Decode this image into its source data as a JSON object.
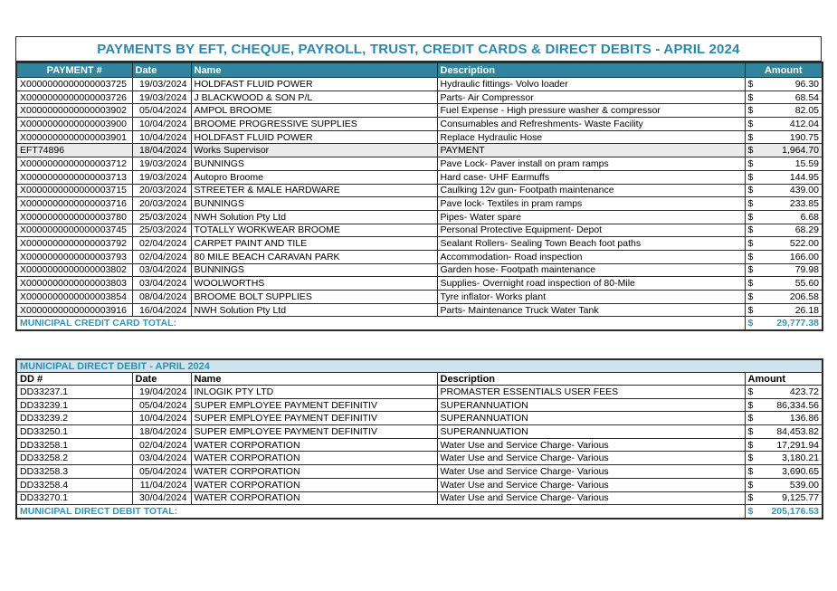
{
  "colors": {
    "header_bg": "#31849b",
    "header_text": "#ffffff",
    "title_text": "#2b87ab",
    "total_text": "#2e96be",
    "subtable_band_bg": "#cfe3ec",
    "highlight_row_bg": "#eaeaea"
  },
  "credit_card_table": {
    "title": "PAYMENTS BY EFT, CHEQUE, PAYROLL, TRUST, CREDIT CARDS & DIRECT DEBITS - APRIL 2024",
    "columns": [
      "PAYMENT #",
      "Date",
      "Name",
      "Description",
      "Amount"
    ],
    "rows": [
      {
        "id": "X0000000000000003725",
        "date": "19/03/2024",
        "name": "HOLDFAST FLUID POWER",
        "description": "Hydraulic fittings- Volvo loader",
        "currency": "$",
        "amount": "96.30",
        "highlight": false
      },
      {
        "id": "X0000000000000003726",
        "date": "19/03/2024",
        "name": "J BLACKWOOD & SON P/L",
        "description": "Parts- Air Compressor",
        "currency": "$",
        "amount": "68.54",
        "highlight": false
      },
      {
        "id": "X0000000000000003902",
        "date": "05/04/2024",
        "name": "AMPOL BROOME",
        "description": "Fuel Expense - High pressure washer & compressor",
        "currency": "$",
        "amount": "82.05",
        "highlight": false
      },
      {
        "id": "X0000000000000003900",
        "date": "10/04/2024",
        "name": "BROOME PROGRESSIVE SUPPLIES",
        "description": "Consumables and Refreshments- Waste Facility",
        "currency": "$",
        "amount": "412.04",
        "highlight": false
      },
      {
        "id": "X0000000000000003901",
        "date": "10/04/2024",
        "name": "HOLDFAST FLUID POWER",
        "description": "Replace Hydraulic Hose",
        "currency": "$",
        "amount": "190.75",
        "highlight": false
      },
      {
        "id": "EFT74896",
        "date": "18/04/2024",
        "name": "Works Supervisor",
        "description": "PAYMENT",
        "currency": "$",
        "amount": "1,964.70",
        "highlight": true
      },
      {
        "id": "X0000000000000003712",
        "date": "19/03/2024",
        "name": "BUNNINGS",
        "description": "Pave Lock- Paver install on pram ramps",
        "currency": "$",
        "amount": "15.59",
        "highlight": false
      },
      {
        "id": "X0000000000000003713",
        "date": "19/03/2024",
        "name": "Autopro Broome",
        "description": "Hard case- UHF Earmuffs",
        "currency": "$",
        "amount": "144.95",
        "highlight": false
      },
      {
        "id": "X0000000000000003715",
        "date": "20/03/2024",
        "name": "STREETER & MALE HARDWARE",
        "description": "Caulking 12v gun- Footpath maintenance",
        "currency": "$",
        "amount": "439.00",
        "highlight": false
      },
      {
        "id": "X0000000000000003716",
        "date": "20/03/2024",
        "name": "BUNNINGS",
        "description": "Pave lock- Textiles in pram ramps",
        "currency": "$",
        "amount": "233.85",
        "highlight": false
      },
      {
        "id": "X0000000000000003780",
        "date": "25/03/2024",
        "name": "NWH Solution Pty Ltd",
        "description": "Pipes- Water spare",
        "currency": "$",
        "amount": "6.68",
        "highlight": false
      },
      {
        "id": "X0000000000000003745",
        "date": "25/03/2024",
        "name": "TOTALLY WORKWEAR BROOME",
        "description": "Personal Protective Equipment- Depot",
        "currency": "$",
        "amount": "68.29",
        "highlight": false
      },
      {
        "id": "X0000000000000003792",
        "date": "02/04/2024",
        "name": "CARPET PAINT AND TILE",
        "description": "Sealant Rollers- Sealing Town Beach foot paths",
        "currency": "$",
        "amount": "522.00",
        "highlight": false
      },
      {
        "id": "X0000000000000003793",
        "date": "02/04/2024",
        "name": "80 MILE BEACH CARAVAN PARK",
        "description": "Accommodation- Road inspection",
        "currency": "$",
        "amount": "166.00",
        "highlight": false
      },
      {
        "id": "X0000000000000003802",
        "date": "03/04/2024",
        "name": "BUNNINGS",
        "description": "Garden hose- Footpath maintenance",
        "currency": "$",
        "amount": "79.98",
        "highlight": false
      },
      {
        "id": "X0000000000000003803",
        "date": "03/04/2024",
        "name": "WOOLWORTHS",
        "description": "Supplies- Overnight road inspection of 80-Mile",
        "currency": "$",
        "amount": "55.60",
        "highlight": false
      },
      {
        "id": "X0000000000000003854",
        "date": "08/04/2024",
        "name": "BROOME BOLT SUPPLIES",
        "description": "Tyre inflator- Works plant",
        "currency": "$",
        "amount": "206.58",
        "highlight": false
      },
      {
        "id": "X0000000000000003916",
        "date": "16/04/2024",
        "name": "NWH Solution Pty Ltd",
        "description": "Parts- Maintenance Truck Water Tank",
        "currency": "$",
        "amount": "26.18",
        "highlight": false
      }
    ],
    "total_label": "MUNICIPAL CREDIT CARD TOTAL:",
    "total_currency": "$",
    "total_amount": "29,777.38"
  },
  "direct_debit_table": {
    "title": "MUNICIPAL DIRECT DEBIT - APRIL 2024",
    "columns": [
      "DD #",
      "Date",
      "Name",
      "Description",
      "Amount"
    ],
    "rows": [
      {
        "id": "DD33237.1",
        "date": "19/04/2024",
        "name": "INLOGIK PTY LTD",
        "description": "PROMASTER ESSENTIALS USER FEES",
        "currency": "$",
        "amount": "423.72",
        "highlight": false
      },
      {
        "id": "DD33239.1",
        "date": "05/04/2024",
        "name": "SUPER EMPLOYEE PAYMENT DEFINITIV",
        "description": "SUPERANNUATION",
        "currency": "$",
        "amount": "86,334.56",
        "highlight": false
      },
      {
        "id": "DD33239.2",
        "date": "10/04/2024",
        "name": "SUPER EMPLOYEE PAYMENT DEFINITIV",
        "description": "SUPERANNUATION",
        "currency": "$",
        "amount": "136.86",
        "highlight": false
      },
      {
        "id": "DD33250.1",
        "date": "18/04/2024",
        "name": "SUPER EMPLOYEE PAYMENT DEFINITIV",
        "description": "SUPERANNUATION",
        "currency": "$",
        "amount": "84,453.82",
        "highlight": false
      },
      {
        "id": "DD33258.1",
        "date": "02/04/2024",
        "name": "WATER CORPORATION",
        "description": "Water Use and Service Charge- Various",
        "currency": "$",
        "amount": "17,291.94",
        "highlight": false
      },
      {
        "id": "DD33258.2",
        "date": "03/04/2024",
        "name": "WATER CORPORATION",
        "description": "Water Use and Service Charge- Various",
        "currency": "$",
        "amount": "3,180.21",
        "highlight": false
      },
      {
        "id": "DD33258.3",
        "date": "05/04/2024",
        "name": "WATER CORPORATION",
        "description": "Water Use and Service Charge- Various",
        "currency": "$",
        "amount": "3,690.65",
        "highlight": false
      },
      {
        "id": "DD33258.4",
        "date": "11/04/2024",
        "name": "WATER CORPORATION",
        "description": "Water Use and Service Charge- Various",
        "currency": "$",
        "amount": "539.00",
        "highlight": false
      },
      {
        "id": "DD33270.1",
        "date": "30/04/2024",
        "name": "WATER CORPORATION",
        "description": "Water Use and Service Charge- Various",
        "currency": "$",
        "amount": "9,125.77",
        "highlight": false
      }
    ],
    "total_label": "MUNICIPAL DIRECT DEBIT TOTAL:",
    "total_currency": "$",
    "total_amount": "205,176.53"
  }
}
